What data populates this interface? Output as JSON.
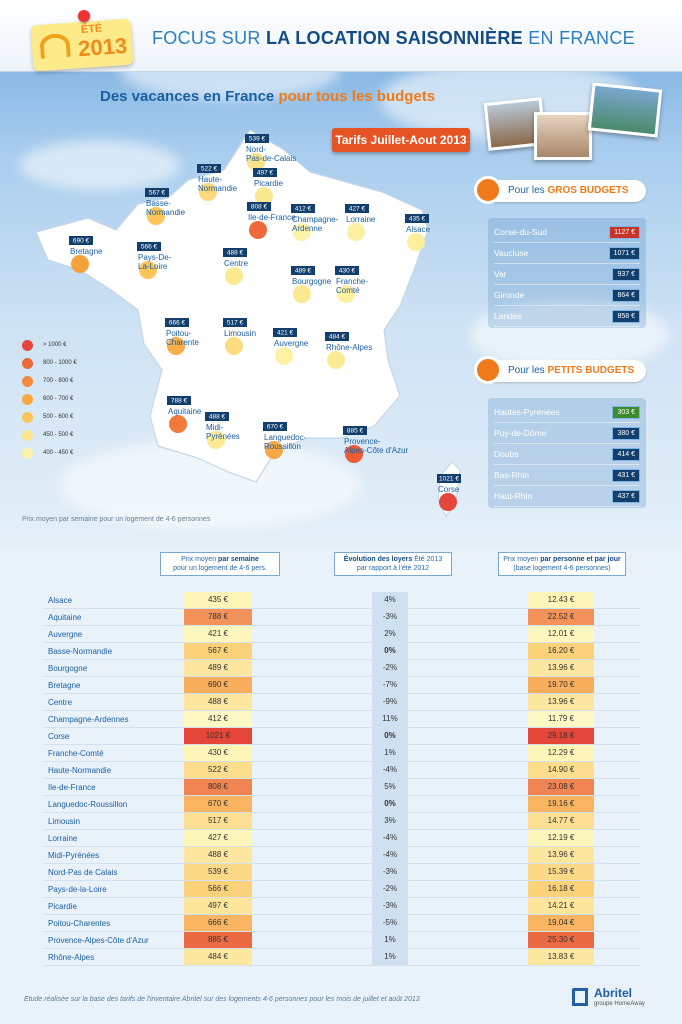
{
  "badge": {
    "ete": "ÉTÉ",
    "year": "2013"
  },
  "header": {
    "title_pre": "FOCUS SUR ",
    "title_bold": "LA LOCATION SAISONNIÈRE",
    "title_post": " EN FRANCE"
  },
  "subtitle": {
    "pre": "Des vacances en France ",
    "highlight": "pour tous les budgets"
  },
  "tarifs_label": "Tarifs Juillet-Aout 2013",
  "map": {
    "regions": [
      {
        "name": "Nord-\nPas-de-Calais",
        "price": "539 €",
        "color": "#fce38a"
      },
      {
        "name": "Picardie",
        "price": "497 €",
        "color": "#fce88f"
      },
      {
        "name": "Haute-\nNormandie",
        "price": "522 €",
        "color": "#fcd97a"
      },
      {
        "name": "Basse-\nNormandie",
        "price": "567 €",
        "color": "#fbc55a"
      },
      {
        "name": "Ile-de-France",
        "price": "808 €",
        "color": "#ef6a3a"
      },
      {
        "name": "Champagne-\nArdenne",
        "price": "412 €",
        "color": "#fdf2a8"
      },
      {
        "name": "Lorraine",
        "price": "427 €",
        "color": "#fdf0a0"
      },
      {
        "name": "Alsace",
        "price": "435 €",
        "color": "#fdef9c"
      },
      {
        "name": "Bretagne",
        "price": "690 €",
        "color": "#f6a03c"
      },
      {
        "name": "Pays-De-\nLa-Loire",
        "price": "566 €",
        "color": "#fbc55a"
      },
      {
        "name": "Centre",
        "price": "488 €",
        "color": "#fde992"
      },
      {
        "name": "Bourgogne",
        "price": "489 €",
        "color": "#fde992"
      },
      {
        "name": "Franche-\nComté",
        "price": "430 €",
        "color": "#fdf0a0"
      },
      {
        "name": "Poitou-\nCharente",
        "price": "666 €",
        "color": "#f8ad48"
      },
      {
        "name": "Limousin",
        "price": "517 €",
        "color": "#fcdc80"
      },
      {
        "name": "Auvergne",
        "price": "421 €",
        "color": "#fdf1a4"
      },
      {
        "name": "Rhône-Alpes",
        "price": "484 €",
        "color": "#fdea94"
      },
      {
        "name": "Aquitaine",
        "price": "788 €",
        "color": "#f07a3c"
      },
      {
        "name": "Midi-\nPyrénées",
        "price": "488 €",
        "color": "#fde992"
      },
      {
        "name": "Languedoc-\nRoussillon",
        "price": "670 €",
        "color": "#f7a844"
      },
      {
        "name": "Provence-\nAlpes-Côte d'Azur",
        "price": "885 €",
        "color": "#ec5a36"
      },
      {
        "name": "Corse",
        "price": "1021 €",
        "color": "#e5463a"
      }
    ],
    "legend": [
      {
        "label": "> 1000 €",
        "color": "#e5463a"
      },
      {
        "label": "800 - 1000 €",
        "color": "#ec6a3a"
      },
      {
        "label": "700 - 800 €",
        "color": "#f38a3e"
      },
      {
        "label": "600 - 700 €",
        "color": "#f7a844"
      },
      {
        "label": "500 - 600 €",
        "color": "#fbc55a"
      },
      {
        "label": "450 - 500 €",
        "color": "#fde58c"
      },
      {
        "label": "400 - 450 €",
        "color": "#fdf2a8"
      }
    ],
    "note": "Prix moyen par semaine pour un logement de 4-6 personnes"
  },
  "gros": {
    "pre": "Pour les ",
    "bold": "GROS BUDGETS",
    "rows": [
      {
        "name": "Corse-du-Sud",
        "value": "1127 €",
        "color": "#c7342a"
      },
      {
        "name": "Vaucluse",
        "value": "1071 €",
        "color": "#123f6e"
      },
      {
        "name": "Var",
        "value": "937 €",
        "color": "#123f6e"
      },
      {
        "name": "Gironde",
        "value": "864 €",
        "color": "#123f6e"
      },
      {
        "name": "Landes",
        "value": "858 €",
        "color": "#123f6e"
      }
    ]
  },
  "petits": {
    "pre": "Pour les ",
    "bold": "PETITS BUDGETS",
    "rows": [
      {
        "name": "Hautes-Pyrénées",
        "value": "303 €",
        "color": "#3d8a2a"
      },
      {
        "name": "Puy-de-Dôme",
        "value": "380 €",
        "color": "#123f6e"
      },
      {
        "name": "Doubs",
        "value": "414 €",
        "color": "#123f6e"
      },
      {
        "name": "Bas-Rhin",
        "value": "431 €",
        "color": "#123f6e"
      },
      {
        "name": "Haut-Rhin",
        "value": "437 €",
        "color": "#123f6e"
      }
    ]
  },
  "table_head": {
    "col1_pre": "Prix moyen ",
    "col1_bold": "par semaine",
    "col1_line2": "pour un logement de 4-6 pers.",
    "col2_bold": "Évolution des loyers",
    "col2_post": " Été 2013",
    "col2_line2": "par rapport à l'été 2012",
    "col3_pre": "Prix moyen ",
    "col3_bold": "par personne et par jour",
    "col3_line2": "(base logement 4-6 personnes)"
  },
  "table": [
    {
      "region": "Alsace",
      "price": "435 €",
      "evo": "4%",
      "daily": "12.43 €",
      "pc": "#fdf6b8",
      "dc": "#fdf6b8"
    },
    {
      "region": "Aquitaine",
      "price": "788 €",
      "evo": "-3%",
      "daily": "22.52 €",
      "pc": "#f3935a",
      "dc": "#f3935a"
    },
    {
      "region": "Auvergne",
      "price": "421 €",
      "evo": "2%",
      "daily": "12.01 €",
      "pc": "#fdf7be",
      "dc": "#fdf7be"
    },
    {
      "region": "Basse-Normandie",
      "price": "567 €",
      "evo": "0%",
      "daily": "16.20 €",
      "pc": "#fbd27a",
      "dc": "#fbd27a"
    },
    {
      "region": "Bourgogne",
      "price": "489 €",
      "evo": "-2%",
      "daily": "13.96 €",
      "pc": "#fde7a0",
      "dc": "#fde7a0"
    },
    {
      "region": "Bretagne",
      "price": "690 €",
      "evo": "-7%",
      "daily": "19.70 €",
      "pc": "#f8ae5a",
      "dc": "#f8ae5a"
    },
    {
      "region": "Centre",
      "price": "488 €",
      "evo": "-9%",
      "daily": "13.96 €",
      "pc": "#fde7a0",
      "dc": "#fde7a0"
    },
    {
      "region": "Champagne-Ardennes",
      "price": "412 €",
      "evo": "11%",
      "daily": "11.79 €",
      "pc": "#fdf8c4",
      "dc": "#fdf8c4"
    },
    {
      "region": "Corse",
      "price": "1021 €",
      "evo": "0%",
      "daily": "29.18 €",
      "pc": "#e5463a",
      "dc": "#e5463a"
    },
    {
      "region": "Franche-Comté",
      "price": "430 €",
      "evo": "1%",
      "daily": "12.29 €",
      "pc": "#fdf6b8",
      "dc": "#fdf6b8"
    },
    {
      "region": "Haute-Normandie",
      "price": "522 €",
      "evo": "-4%",
      "daily": "14.90 €",
      "pc": "#fcde8e",
      "dc": "#fcde8e"
    },
    {
      "region": "Ile-de-France",
      "price": "808 €",
      "evo": "5%",
      "daily": "23.08 €",
      "pc": "#f08452",
      "dc": "#f08452"
    },
    {
      "region": "Languedoc-Roussillon",
      "price": "670 €",
      "evo": "0%",
      "daily": "19.16 €",
      "pc": "#f9b462",
      "dc": "#f9b462"
    },
    {
      "region": "Limousin",
      "price": "517 €",
      "evo": "3%",
      "daily": "14.77 €",
      "pc": "#fcdf92",
      "dc": "#fcdf92"
    },
    {
      "region": "Lorraine",
      "price": "427 €",
      "evo": "-4%",
      "daily": "12.19 €",
      "pc": "#fdf6ba",
      "dc": "#fdf6ba"
    },
    {
      "region": "Midi-Pyrénées",
      "price": "488 €",
      "evo": "-4%",
      "daily": "13.96 €",
      "pc": "#fde7a0",
      "dc": "#fde7a0"
    },
    {
      "region": "Nord-Pas de Calais",
      "price": "539 €",
      "evo": "-3%",
      "daily": "15.39 €",
      "pc": "#fcd986",
      "dc": "#fcd986"
    },
    {
      "region": "Pays-de-la-Loire",
      "price": "566 €",
      "evo": "-2%",
      "daily": "16.18 €",
      "pc": "#fbd27a",
      "dc": "#fbd27a"
    },
    {
      "region": "Picardie",
      "price": "497 €",
      "evo": "-3%",
      "daily": "14.21 €",
      "pc": "#fde59c",
      "dc": "#fde59c"
    },
    {
      "region": "Poitou-Charentes",
      "price": "666 €",
      "evo": "-5%",
      "daily": "19.04 €",
      "pc": "#f9b462",
      "dc": "#f9b462"
    },
    {
      "region": "Provence-Alpes-Côte d'Azur",
      "price": "885 €",
      "evo": "1%",
      "daily": "25.30 €",
      "pc": "#ec6a42",
      "dc": "#ec6a42"
    },
    {
      "region": "Rhône-Alpes",
      "price": "484 €",
      "evo": "1%",
      "daily": "13.83 €",
      "pc": "#fde8a2",
      "dc": "#fde8a2"
    }
  ],
  "footer": "Etude réalisée sur la base des tarifs de l'inventaire Abritel sur des logements 4-6 personnes pour les mois de juillet et août 2013",
  "logo": {
    "brand": "Abritel",
    "group": "groupe HomeAway"
  }
}
